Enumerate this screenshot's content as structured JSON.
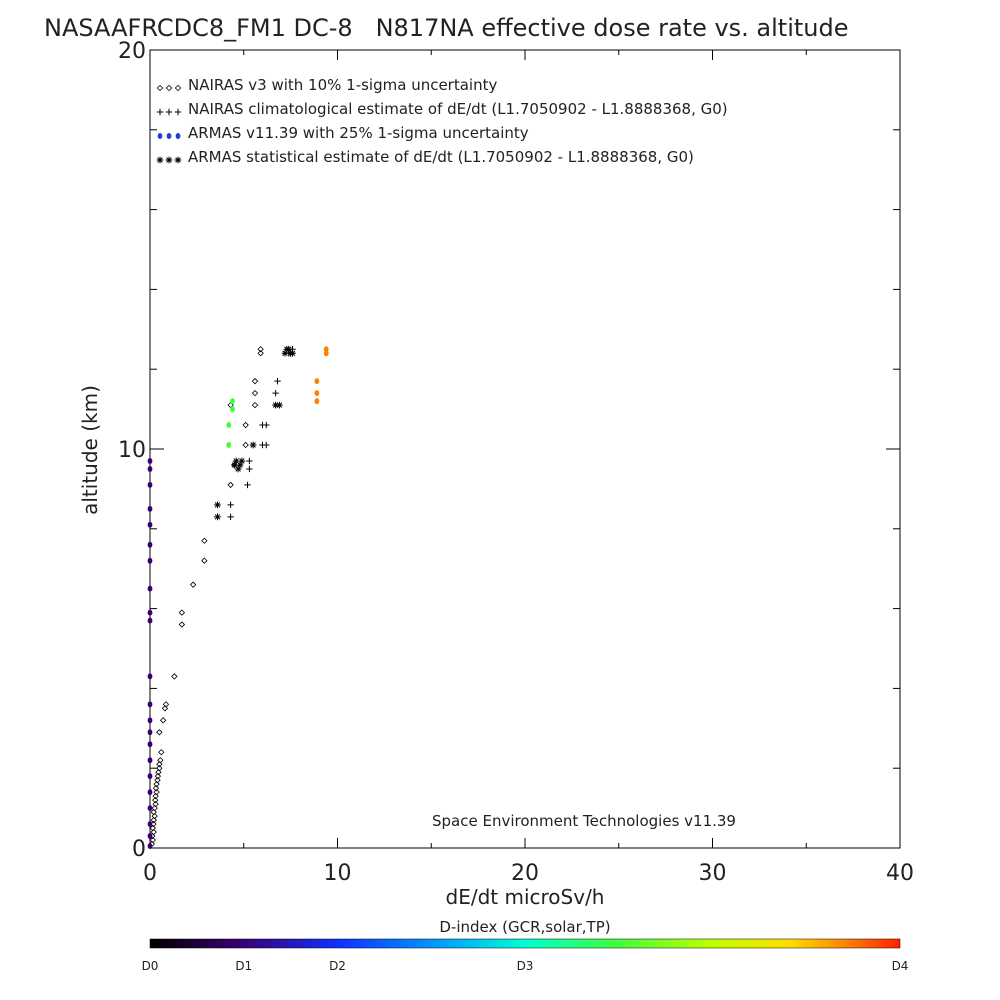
{
  "chart_data": {
    "type": "scatter",
    "title": "NASAAFRCDC8_FM1 DC-8   N817NA effective dose rate vs. altitude",
    "xlabel": "dE/dt microSv/h",
    "ylabel": "altitude (km)",
    "xlim": [
      0,
      40
    ],
    "ylim": [
      0,
      20
    ],
    "x_ticks": [
      "0",
      "10",
      "20",
      "30",
      "40"
    ],
    "y_ticks": [
      "0",
      "10",
      "20"
    ],
    "legend_position": "top-left",
    "legend": [
      {
        "marker": "diamond",
        "label": "NAIRAS v3 with 10% 1-sigma uncertainty",
        "color": "#000000"
      },
      {
        "marker": "plus",
        "label": "NAIRAS climatological estimate of dE/dt (L1.7050902 - L1.8888368, G0)",
        "color": "#000000"
      },
      {
        "marker": "dot",
        "label": "ARMAS v11.39 with 25% 1-sigma uncertainty",
        "color": "#1f3fd0"
      },
      {
        "marker": "asterisk",
        "label": "ARMAS statistical estimate of dE/dt (L1.7050902 - L1.8888368, G0)",
        "color": "#000000"
      }
    ],
    "annotation": "Space Environment Technologies v11.39",
    "colorbar": {
      "title": "D-index (GCR,solar,TP)",
      "labels": [
        "D0",
        "D1",
        "D2",
        "D3",
        "D4"
      ],
      "label_positions": [
        0,
        0.125,
        0.25,
        0.5,
        1.0
      ],
      "colors": [
        "#000000",
        "#3a0070",
        "#1030ff",
        "#00a8ff",
        "#00ffd0",
        "#40ff40",
        "#c0ff00",
        "#ffe000",
        "#ff8000",
        "#ff2000"
      ]
    },
    "series": [
      {
        "name": "NAIRAS v3",
        "marker": "diamond",
        "color": "#000000",
        "points": [
          [
            0.1,
            0.1
          ],
          [
            0.15,
            0.2
          ],
          [
            0.12,
            0.3
          ],
          [
            0.2,
            0.4
          ],
          [
            0.15,
            0.5
          ],
          [
            0.18,
            0.6
          ],
          [
            0.2,
            0.7
          ],
          [
            0.25,
            0.8
          ],
          [
            0.2,
            0.9
          ],
          [
            0.25,
            1.0
          ],
          [
            0.3,
            1.1
          ],
          [
            0.28,
            1.2
          ],
          [
            0.3,
            1.3
          ],
          [
            0.35,
            1.4
          ],
          [
            0.32,
            1.5
          ],
          [
            0.35,
            1.6
          ],
          [
            0.4,
            1.7
          ],
          [
            0.42,
            1.8
          ],
          [
            0.45,
            1.9
          ],
          [
            0.5,
            2.0
          ],
          [
            0.5,
            2.1
          ],
          [
            0.55,
            2.2
          ],
          [
            0.6,
            2.4
          ],
          [
            0.5,
            2.9
          ],
          [
            0.7,
            3.2
          ],
          [
            0.8,
            3.5
          ],
          [
            0.85,
            3.6
          ],
          [
            1.3,
            4.3
          ],
          [
            1.7,
            5.6
          ],
          [
            1.7,
            5.9
          ],
          [
            2.3,
            6.6
          ],
          [
            2.9,
            7.2
          ],
          [
            2.9,
            7.7
          ],
          [
            4.3,
            9.1
          ],
          [
            4.5,
            9.6
          ],
          [
            5.1,
            10.1
          ],
          [
            5.1,
            10.6
          ],
          [
            4.3,
            11.1
          ],
          [
            5.6,
            11.1
          ],
          [
            5.6,
            11.4
          ],
          [
            5.6,
            11.7
          ],
          [
            5.9,
            12.4
          ],
          [
            5.9,
            12.5
          ]
        ]
      },
      {
        "name": "NAIRAS climatological estimate",
        "marker": "plus",
        "color": "#000000",
        "points": [
          [
            4.3,
            8.3
          ],
          [
            4.3,
            8.6
          ],
          [
            5.2,
            9.1
          ],
          [
            5.3,
            9.5
          ],
          [
            5.3,
            9.7
          ],
          [
            6.0,
            10.1
          ],
          [
            6.2,
            10.1
          ],
          [
            6.0,
            10.6
          ],
          [
            6.2,
            10.6
          ],
          [
            6.7,
            11.4
          ],
          [
            6.8,
            11.7
          ],
          [
            7.4,
            12.4
          ],
          [
            7.5,
            12.4
          ],
          [
            7.6,
            12.5
          ]
        ]
      },
      {
        "name": "ARMAS v11.39",
        "marker": "dot",
        "color_by_dindex": true,
        "points": [
          [
            0,
            0.05,
            0.1
          ],
          [
            0,
            0.3,
            0.1
          ],
          [
            0,
            0.6,
            0.1
          ],
          [
            0,
            1.0,
            0.1
          ],
          [
            0,
            1.4,
            0.1
          ],
          [
            0,
            1.8,
            0.1
          ],
          [
            0,
            2.2,
            0.1
          ],
          [
            0,
            2.6,
            0.1
          ],
          [
            0,
            2.9,
            0.1
          ],
          [
            0,
            3.2,
            0.1
          ],
          [
            0,
            3.6,
            0.1
          ],
          [
            0,
            4.3,
            0.1
          ],
          [
            0,
            5.7,
            0.1
          ],
          [
            0,
            5.9,
            0.1
          ],
          [
            0,
            6.5,
            0.1
          ],
          [
            0,
            7.2,
            0.1
          ],
          [
            0,
            7.6,
            0.1
          ],
          [
            0,
            8.1,
            0.1
          ],
          [
            0,
            8.5,
            0.1
          ],
          [
            0,
            9.1,
            0.1
          ],
          [
            0,
            9.5,
            0.1
          ],
          [
            0,
            9.7,
            0.1
          ],
          [
            4.2,
            10.1,
            0.6
          ],
          [
            4.2,
            10.6,
            0.6
          ],
          [
            4.4,
            11.0,
            0.6
          ],
          [
            4.4,
            11.2,
            0.6
          ],
          [
            8.9,
            11.2,
            0.9
          ],
          [
            8.9,
            11.4,
            0.9
          ],
          [
            8.9,
            11.7,
            0.9
          ],
          [
            9.4,
            12.4,
            0.9
          ],
          [
            9.4,
            12.5,
            0.9
          ]
        ]
      },
      {
        "name": "ARMAS statistical estimate",
        "marker": "asterisk",
        "color": "#000000",
        "points": [
          [
            3.6,
            8.3
          ],
          [
            3.6,
            8.6
          ],
          [
            4.7,
            9.5
          ],
          [
            4.8,
            9.6
          ],
          [
            4.5,
            9.6
          ],
          [
            4.9,
            9.7
          ],
          [
            4.6,
            9.7
          ],
          [
            5.5,
            10.1
          ],
          [
            6.7,
            11.1
          ],
          [
            6.9,
            11.1
          ],
          [
            7.2,
            12.4
          ],
          [
            7.3,
            12.5
          ],
          [
            7.5,
            12.4
          ],
          [
            7.4,
            12.5
          ],
          [
            7.6,
            12.4
          ]
        ]
      }
    ]
  }
}
